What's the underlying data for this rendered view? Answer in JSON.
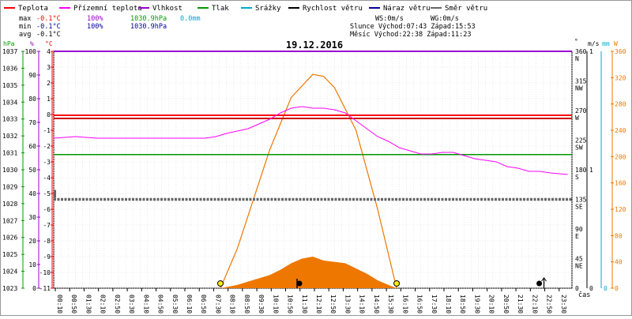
{
  "legend": [
    {
      "label": "Teplota",
      "color": "#ff0000"
    },
    {
      "label": "Přízemní teplota",
      "color": "#ff00ff"
    },
    {
      "label": "Vlhkost",
      "color": "#9900cc"
    },
    {
      "label": "Tlak",
      "color": "#009900"
    },
    {
      "label": "Srážky",
      "color": "#00aacc"
    },
    {
      "label": "Rychlost větru",
      "color": "#000000"
    },
    {
      "label": "Náraz větru",
      "color": "#000099"
    },
    {
      "label": "Směr větru",
      "color": "#666666"
    }
  ],
  "stats": {
    "max_label": "max",
    "max_temp": "-0.1°C",
    "max_hum": "100%",
    "max_press": "1030.9hPa",
    "max_rain": "0.0mm",
    "min_label": "min",
    "min_temp": "-0.1°C",
    "min_hum": "100%",
    "min_press": "1030.9hPa",
    "avg_label": "avg",
    "avg_temp": "-0.1°C"
  },
  "info": {
    "ws": "WS:0m/s",
    "wg": "WG:0m/s",
    "sun": "Slunce Východ:07:43  Západ:15:53",
    "moon": "Měsíc  Východ:22:38  Západ:11:23"
  },
  "date": "19.12.2016",
  "time_label": "čas",
  "colors": {
    "temp": "#ff0000",
    "feels": "#ff00ff",
    "hum": "#9900cc",
    "press": "#009900",
    "rain": "#00aacc",
    "wind": "#000000",
    "dir": "#666666",
    "solar": "#ee7700",
    "moon": "#000000",
    "axis_left": "#009900",
    "axis_hum": "#9900cc",
    "axis_temp": "#ff0000"
  },
  "chart_data": {
    "type": "line",
    "title": "19.12.2016",
    "x_ticks": [
      "00:10",
      "00:50",
      "01:30",
      "02:10",
      "02:50",
      "03:30",
      "04:10",
      "04:50",
      "05:30",
      "06:10",
      "06:50",
      "07:30",
      "08:10",
      "08:50",
      "09:30",
      "10:10",
      "10:50",
      "11:30",
      "12:10",
      "12:50",
      "13:30",
      "14:10",
      "14:50",
      "15:30",
      "16:10",
      "16:50",
      "17:30",
      "18:10",
      "18:50",
      "19:30",
      "20:10",
      "20:50",
      "21:30",
      "22:10",
      "22:50",
      "23:30"
    ],
    "axes": {
      "pressure": {
        "unit": "hPa",
        "ticks": [
          "1037",
          "1036",
          "1035",
          "1034",
          "1033",
          "1032",
          "1031",
          "1030",
          "1029",
          "1028",
          "1027",
          "1026",
          "1025",
          "1024",
          "1023"
        ],
        "range": [
          1023,
          1037
        ]
      },
      "humidity": {
        "unit": "%",
        "ticks": [
          "100",
          "90",
          "80",
          "70",
          "60",
          "50",
          "40",
          "30",
          "20",
          "10",
          "0"
        ],
        "range": [
          0,
          100
        ]
      },
      "temperature": {
        "unit": "°C",
        "ticks": [
          "4",
          "3",
          "2",
          "1",
          "0",
          "-1",
          "-2",
          "-3",
          "-4",
          "-5",
          "-6",
          "-7",
          "-8",
          "-9",
          "-10",
          "-11"
        ],
        "range": [
          -11,
          4
        ]
      },
      "wind_dir": {
        "unit": "°",
        "ticks": [
          {
            "deg": "360",
            "dir": "N"
          },
          {
            "deg": "315",
            "dir": "NW"
          },
          {
            "deg": "270",
            "dir": "W"
          },
          {
            "deg": "225",
            "dir": "SW"
          },
          {
            "deg": "180",
            "dir": "S"
          },
          {
            "deg": "135",
            "dir": "SE"
          },
          {
            "deg": "90",
            "dir": "E"
          },
          {
            "deg": "45",
            "dir": "NE"
          },
          {
            "deg": "0",
            "dir": ""
          }
        ],
        "range": [
          0,
          360
        ]
      },
      "wind_speed": {
        "unit": "m/s",
        "ticks": [
          "1",
          "1",
          "0"
        ],
        "range": [
          0,
          1
        ]
      },
      "rain": {
        "unit": "mm",
        "ticks": [
          "0"
        ]
      },
      "solar": {
        "unit": "W",
        "ticks": [
          "360",
          "320",
          "280",
          "240",
          "200",
          "160",
          "120",
          "80",
          "40",
          "0"
        ],
        "range": [
          0,
          360
        ]
      }
    },
    "series": {
      "temperature": {
        "value": -0.1
      },
      "humidity": {
        "value": 100
      },
      "pressure": {
        "value": 1030.9
      },
      "wind_direction": {
        "value": 135
      },
      "ground_temperature": {
        "x": [
          0,
          1,
          2,
          3,
          4,
          5,
          6,
          7,
          7.5,
          8,
          9,
          10,
          10.5,
          11,
          11.5,
          12,
          12.5,
          13,
          13.5,
          14,
          14.5,
          15,
          15.5,
          16,
          16.5,
          17,
          17.5,
          18,
          18.5,
          19,
          19.5,
          20,
          20.5,
          21,
          21.5,
          22,
          22.5,
          23,
          23.8
        ],
        "y": [
          -1.5,
          -1.4,
          -1.5,
          -1.5,
          -1.5,
          -1.5,
          -1.5,
          -1.5,
          -1.4,
          -1.2,
          -0.9,
          -0.3,
          0.1,
          0.4,
          0.5,
          0.4,
          0.4,
          0.3,
          0.1,
          -0.4,
          -0.9,
          -1.4,
          -1.7,
          -2.1,
          -2.3,
          -2.5,
          -2.5,
          -2.4,
          -2.4,
          -2.6,
          -2.8,
          -2.9,
          -3.0,
          -3.3,
          -3.4,
          -3.6,
          -3.6,
          -3.7,
          -3.8
        ]
      },
      "solar_theoretical": {
        "x": [
          7.72,
          8.5,
          9,
          10,
          11,
          12,
          12.5,
          13,
          14,
          15,
          15.88
        ],
        "y": [
          0,
          60,
          110,
          210,
          290,
          325,
          322,
          305,
          240,
          120,
          0
        ]
      },
      "solar_measured": {
        "x": [
          7.72,
          8.5,
          9,
          10,
          10.5,
          11,
          11.5,
          12,
          12.5,
          13,
          13.5,
          14,
          14.5,
          15,
          15.5,
          15.88
        ],
        "y": [
          0,
          5,
          10,
          20,
          28,
          38,
          45,
          48,
          42,
          40,
          38,
          30,
          22,
          12,
          5,
          0
        ]
      }
    },
    "markers": {
      "sunrise": 7.72,
      "sunset": 15.88,
      "moonset": 11.38,
      "moonrise": 22.63
    }
  }
}
